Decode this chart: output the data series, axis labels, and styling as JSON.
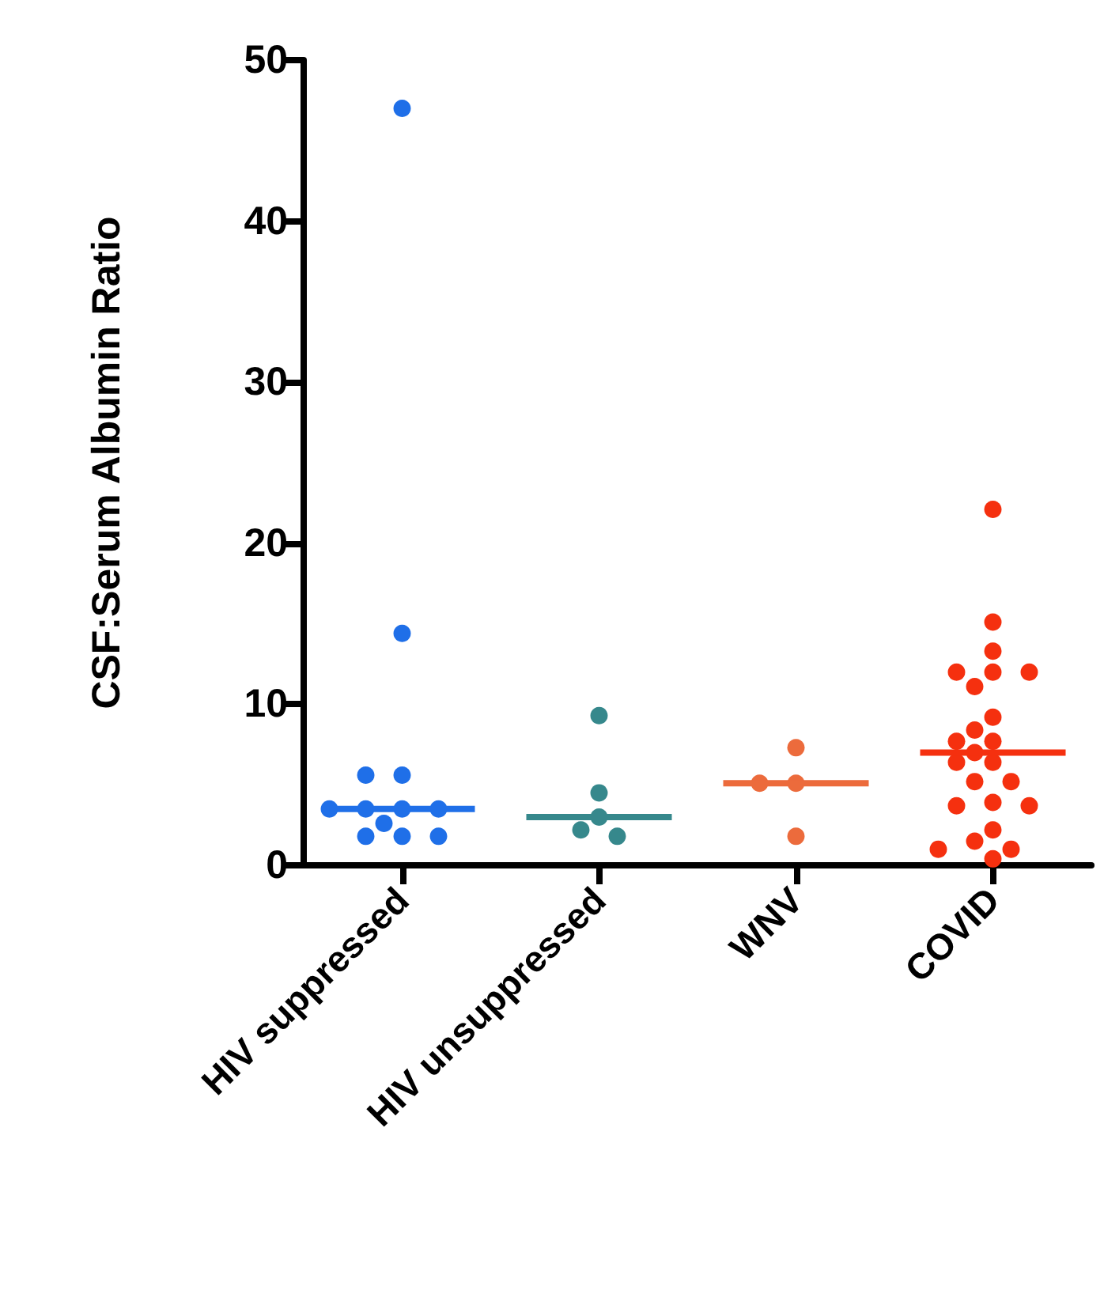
{
  "chart_data": {
    "type": "scatter",
    "ylabel": "CSF:Serum Albumin Ratio",
    "categories": [
      "HIV suppressed",
      "HIV unsuppressed",
      "WNV",
      "COVID"
    ],
    "ylim": [
      0,
      50
    ],
    "yticks": [
      0,
      10,
      20,
      30,
      40,
      50
    ],
    "marker": "circle",
    "series": [
      {
        "color": "#1f6fe8",
        "x": [
          "HIV suppressed",
          "HIV suppressed",
          "HIV suppressed",
          "HIV suppressed",
          "HIV suppressed",
          "HIV suppressed",
          "HIV suppressed",
          "HIV suppressed",
          "HIV suppressed",
          "HIV suppressed",
          "HIV suppressed",
          "HIV suppressed"
        ],
        "values": [
          47,
          14.4,
          5.6,
          5.6,
          3.5,
          3.5,
          3.5,
          3.5,
          2.6,
          1.8,
          1.8,
          1.8
        ]
      },
      {
        "color": "#36888c",
        "x": [
          "HIV unsuppressed",
          "HIV unsuppressed",
          "HIV unsuppressed",
          "HIV unsuppressed",
          "HIV unsuppressed"
        ],
        "values": [
          9.3,
          4.5,
          3.0,
          2.2,
          1.8
        ]
      },
      {
        "color": "#ec6b3c",
        "x": [
          "WNV",
          "WNV",
          "WNV",
          "WNV"
        ],
        "values": [
          7.3,
          5.1,
          5.1,
          1.8
        ]
      },
      {
        "color": "#f5300f",
        "x": [
          "COVID",
          "COVID",
          "COVID",
          "COVID",
          "COVID",
          "COVID",
          "COVID",
          "COVID",
          "COVID",
          "COVID",
          "COVID",
          "COVID",
          "COVID",
          "COVID",
          "COVID",
          "COVID",
          "COVID",
          "COVID",
          "COVID",
          "COVID",
          "COVID",
          "COVID",
          "COVID",
          "COVID"
        ],
        "values": [
          22.1,
          15.1,
          13.3,
          12.0,
          12.0,
          12.0,
          11.1,
          9.2,
          8.4,
          7.7,
          7.7,
          7.0,
          6.4,
          6.4,
          5.2,
          5.2,
          3.9,
          3.7,
          3.7,
          2.2,
          1.5,
          1.0,
          1.0,
          0.4
        ]
      },
      {
        "type": "box",
        "colors": [
          "#1f6fe8",
          "#36888c",
          "#ec6b3c",
          "#f5300f"
        ],
        "boxes": [
          {
            "low": 3.5,
            "q1": 3.5,
            "median": 3.5,
            "q3": 3.5,
            "high": 3.5
          },
          {
            "low": 3.0,
            "q1": 3.0,
            "median": 3.0,
            "q3": 3.0,
            "high": 3.0
          },
          {
            "low": 5.1,
            "q1": 5.1,
            "median": 5.1,
            "q3": 5.1,
            "high": 5.1
          },
          {
            "low": 7.0,
            "q1": 7.0,
            "median": 7.0,
            "q3": 7.0,
            "high": 7.0
          }
        ]
      }
    ]
  }
}
